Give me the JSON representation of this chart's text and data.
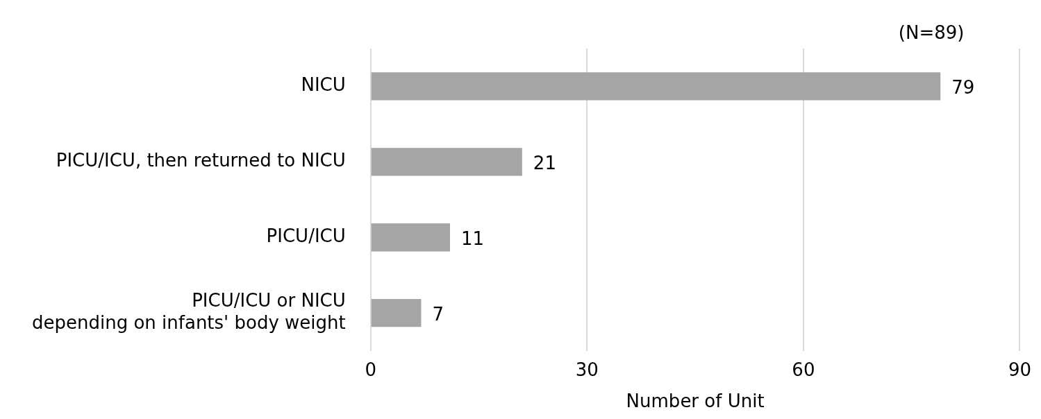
{
  "chart_data": {
    "type": "bar",
    "orientation": "horizontal",
    "categories": [
      "NICU",
      "PICU/ICU, then returned to NICU",
      "PICU/ICU",
      "PICU/ICU or NICU\ndepending on infants' body weight"
    ],
    "values": [
      79,
      21,
      11,
      7
    ],
    "color": "#a5a5a5",
    "xlim": [
      0,
      90
    ],
    "xticks": [
      0,
      30,
      60,
      90
    ],
    "xlabel": "Number of Unit",
    "grid": "x",
    "data_labels": true,
    "legend": false,
    "annotations": [
      "(N=89)"
    ]
  }
}
